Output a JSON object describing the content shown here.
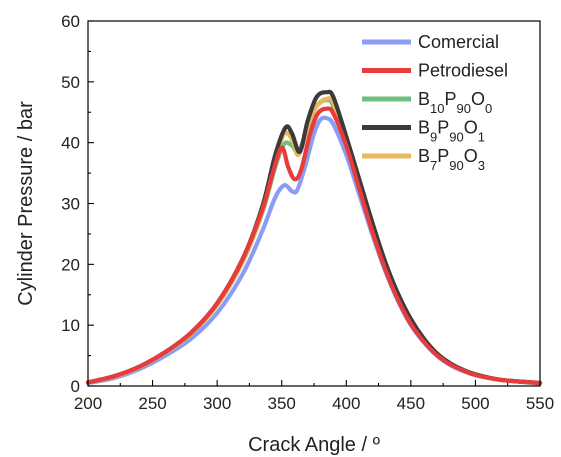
{
  "chart_data": {
    "type": "line",
    "xlabel": "Crack Angle / º",
    "ylabel": "Cylinder Pressure / bar",
    "xlim": [
      200,
      550
    ],
    "ylim": [
      0,
      60
    ],
    "xticks": [
      200,
      250,
      300,
      350,
      400,
      450,
      500,
      550
    ],
    "yticks": [
      0,
      10,
      20,
      30,
      40,
      50,
      60
    ],
    "legend_position": "top-right",
    "grid": false,
    "series": [
      {
        "name": "Comercial",
        "sub": [
          "",
          ""
        ],
        "color": "#8b9cf4",
        "x": [
          200,
          220,
          240,
          260,
          280,
          300,
          320,
          335,
          345,
          352,
          358,
          362,
          368,
          375,
          380,
          385,
          390,
          400,
          410,
          420,
          430,
          440,
          450,
          460,
          470,
          480,
          490,
          500,
          520,
          550
        ],
        "y": [
          0.5,
          1.3,
          2.8,
          5.0,
          7.8,
          12.0,
          18.5,
          25.5,
          31.0,
          33.0,
          32.0,
          32.2,
          36.0,
          41.5,
          43.8,
          44.0,
          43.0,
          38.0,
          31.5,
          25.0,
          19.0,
          14.0,
          10.0,
          7.2,
          5.0,
          3.5,
          2.5,
          1.8,
          1.0,
          0.4
        ]
      },
      {
        "name": "Petrodiesel",
        "sub": [
          "",
          ""
        ],
        "color": "#e83b3b",
        "x": [
          200,
          220,
          240,
          260,
          280,
          300,
          320,
          335,
          343,
          350,
          355,
          360,
          365,
          372,
          378,
          385,
          390,
          400,
          410,
          420,
          430,
          440,
          450,
          460,
          470,
          480,
          490,
          500,
          520,
          550
        ],
        "y": [
          0.6,
          1.6,
          3.2,
          5.6,
          8.8,
          13.6,
          21.0,
          29.0,
          35.0,
          39.2,
          36.0,
          34.0,
          35.5,
          41.5,
          44.8,
          45.6,
          44.8,
          39.5,
          32.5,
          25.5,
          19.3,
          14.2,
          10.2,
          7.3,
          5.1,
          3.6,
          2.6,
          1.8,
          1.0,
          0.5
        ]
      },
      {
        "name": "B",
        "sub": [
          "10",
          "P",
          "90",
          "O",
          "0"
        ],
        "color": "#6dbf7f",
        "x": [
          200,
          220,
          240,
          260,
          280,
          300,
          320,
          335,
          345,
          352,
          358,
          363,
          370,
          377,
          385,
          390,
          400,
          410,
          420,
          430,
          440,
          450,
          460,
          470,
          480,
          490,
          500,
          520,
          550
        ],
        "y": [
          0.6,
          1.5,
          3.1,
          5.5,
          8.6,
          13.3,
          20.5,
          28.5,
          36.0,
          39.8,
          39.5,
          38.5,
          42.5,
          46.0,
          47.0,
          46.0,
          40.0,
          33.0,
          26.0,
          19.7,
          14.6,
          10.5,
          7.5,
          5.2,
          3.7,
          2.6,
          1.9,
          1.0,
          0.5
        ]
      },
      {
        "name": "B",
        "sub": [
          "9",
          "P",
          "90",
          "O",
          "1"
        ],
        "color": "#3b3b3b",
        "x": [
          200,
          220,
          240,
          260,
          280,
          300,
          320,
          335,
          345,
          353,
          358,
          364,
          370,
          377,
          385,
          390,
          400,
          410,
          420,
          430,
          440,
          450,
          460,
          470,
          480,
          490,
          500,
          520,
          550
        ],
        "y": [
          0.6,
          1.6,
          3.2,
          5.6,
          8.8,
          13.6,
          21.0,
          29.5,
          38.0,
          42.5,
          41.5,
          38.5,
          43.5,
          47.5,
          48.3,
          47.5,
          41.0,
          34.0,
          27.0,
          20.5,
          15.2,
          11.0,
          7.8,
          5.4,
          3.8,
          2.7,
          1.9,
          1.0,
          0.5
        ]
      },
      {
        "name": "B",
        "sub": [
          "7",
          "P",
          "90",
          "O",
          "3"
        ],
        "color": "#e8b85c",
        "x": [
          200,
          220,
          240,
          260,
          280,
          300,
          320,
          335,
          345,
          352,
          358,
          363,
          370,
          377,
          385,
          390,
          400,
          410,
          420,
          430,
          440,
          450,
          460,
          470,
          480,
          490,
          500,
          520,
          550
        ],
        "y": [
          0.6,
          1.5,
          3.1,
          5.5,
          8.6,
          13.3,
          20.5,
          28.8,
          37.0,
          41.5,
          40.5,
          38.0,
          42.5,
          46.0,
          47.2,
          46.5,
          40.5,
          33.5,
          26.5,
          20.0,
          14.8,
          10.7,
          7.6,
          5.3,
          3.7,
          2.6,
          1.9,
          1.0,
          0.5
        ]
      }
    ],
    "draw_order": [
      0,
      2,
      4,
      3,
      1
    ]
  }
}
